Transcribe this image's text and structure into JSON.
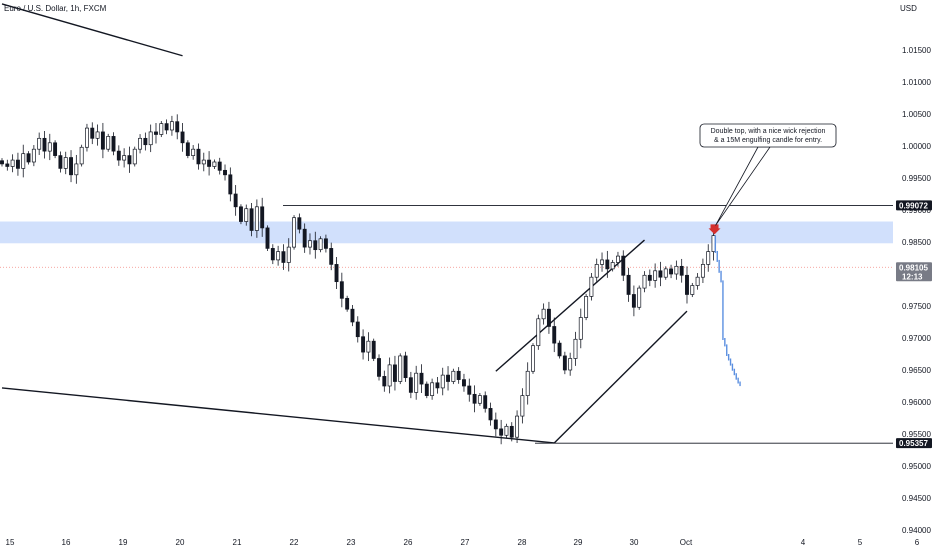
{
  "chart_data": {
    "type": "candlestick",
    "title": "Euro / U.S. Dollar, 1h, FXCM",
    "currency": "USD",
    "ylim": [
      0.94,
      1.02
    ],
    "y_ticks": [
      "1.01500",
      "1.01000",
      "1.00500",
      "1.00000",
      "0.99500",
      "0.99000",
      "0.98500",
      "0.98000",
      "0.97500",
      "0.97000",
      "0.96500",
      "0.96000",
      "0.95500",
      "0.95000",
      "0.94500",
      "0.94000"
    ],
    "x_ticks": [
      "15",
      "16",
      "19",
      "20",
      "21",
      "22",
      "23",
      "26",
      "27",
      "28",
      "29",
      "30",
      "Oct",
      "4",
      "5",
      "6"
    ],
    "price_tags": [
      {
        "id": "resistance",
        "label": "0.99072",
        "value": 0.99072,
        "color": "#131722"
      },
      {
        "id": "current",
        "label": "0.98105",
        "sublabel": "12:13",
        "value": 0.98105,
        "color": "#787b86"
      },
      {
        "id": "support",
        "label": "0.95357",
        "value": 0.95357,
        "color": "#131722"
      }
    ],
    "annotation": "Double top, with a nice wick rejection & a 15M engulfing candle for entry.",
    "zone": {
      "low": 0.9848,
      "high": 0.9882,
      "color": "#d1e0fc"
    },
    "candle_colors": {
      "up": "#ffffff",
      "down": "#131722",
      "wick": "#131722"
    },
    "projection_color": "#5b8fe0",
    "arrow_color": "#d32f2f",
    "current_line_color": "#f28b82",
    "series": [
      {
        "o": 0.9977,
        "c": 0.9972
      },
      {
        "o": 0.9972,
        "c": 0.9968
      },
      {
        "o": 0.9968,
        "c": 0.9978
      },
      {
        "o": 0.9978,
        "c": 0.9965
      },
      {
        "o": 0.9965,
        "c": 0.9988
      },
      {
        "o": 0.9988,
        "c": 0.9975
      },
      {
        "o": 0.9975,
        "c": 0.9995
      },
      {
        "o": 0.9995,
        "c": 1.0012
      },
      {
        "o": 1.0012,
        "c": 0.9992
      },
      {
        "o": 0.9992,
        "c": 1.0005
      },
      {
        "o": 1.0005,
        "c": 0.9985
      },
      {
        "o": 0.9985,
        "c": 0.9965
      },
      {
        "o": 0.9965,
        "c": 0.9982
      },
      {
        "o": 0.9982,
        "c": 0.9955
      },
      {
        "o": 0.9955,
        "c": 0.9972
      },
      {
        "o": 0.9972,
        "c": 0.9998
      },
      {
        "o": 0.9998,
        "c": 1.0028
      },
      {
        "o": 1.0028,
        "c": 1.0012
      },
      {
        "o": 1.0012,
        "c": 1.0022
      },
      {
        "o": 1.0022,
        "c": 0.9995
      },
      {
        "o": 0.9995,
        "c": 1.0015
      },
      {
        "o": 1.0015,
        "c": 0.9992
      },
      {
        "o": 0.9992,
        "c": 0.9978
      },
      {
        "o": 0.9978,
        "c": 0.9985
      },
      {
        "o": 0.9985,
        "c": 0.9972
      },
      {
        "o": 0.9972,
        "c": 0.9995
      },
      {
        "o": 0.9995,
        "c": 1.0012
      },
      {
        "o": 1.0012,
        "c": 1.0002
      },
      {
        "o": 1.0002,
        "c": 1.0022
      },
      {
        "o": 1.0022,
        "c": 1.0018
      },
      {
        "o": 1.0018,
        "c": 1.0035
      },
      {
        "o": 1.0035,
        "c": 1.0025
      },
      {
        "o": 1.0025,
        "c": 1.0038
      },
      {
        "o": 1.0038,
        "c": 1.0022
      },
      {
        "o": 1.0022,
        "c": 1.0005
      },
      {
        "o": 1.0005,
        "c": 0.9985
      },
      {
        "o": 0.9985,
        "c": 0.9995
      },
      {
        "o": 0.9995,
        "c": 0.9972
      },
      {
        "o": 0.9972,
        "c": 0.9978
      },
      {
        "o": 0.9978,
        "c": 0.9968
      },
      {
        "o": 0.9968,
        "c": 0.9975
      },
      {
        "o": 0.9975,
        "c": 0.9962
      },
      {
        "o": 0.9962,
        "c": 0.9955
      },
      {
        "o": 0.9955,
        "c": 0.9925
      },
      {
        "o": 0.9925,
        "c": 0.9905
      },
      {
        "o": 0.9905,
        "c": 0.9882
      },
      {
        "o": 0.9882,
        "c": 0.9902
      },
      {
        "o": 0.9902,
        "c": 0.9868
      },
      {
        "o": 0.9868,
        "c": 0.9905
      },
      {
        "o": 0.9905,
        "c": 0.9872
      },
      {
        "o": 0.9872,
        "c": 0.984
      },
      {
        "o": 0.984,
        "c": 0.9822
      },
      {
        "o": 0.9822,
        "c": 0.9835
      },
      {
        "o": 0.9835,
        "c": 0.9818
      },
      {
        "o": 0.9818,
        "c": 0.9842
      },
      {
        "o": 0.9842,
        "c": 0.9888
      },
      {
        "o": 0.9888,
        "c": 0.987
      },
      {
        "o": 0.987,
        "c": 0.9842
      },
      {
        "o": 0.9842,
        "c": 0.9852
      },
      {
        "o": 0.9852,
        "c": 0.9838
      },
      {
        "o": 0.9838,
        "c": 0.9855
      },
      {
        "o": 0.9855,
        "c": 0.984
      },
      {
        "o": 0.984,
        "c": 0.9815
      },
      {
        "o": 0.9815,
        "c": 0.9788
      },
      {
        "o": 0.9788,
        "c": 0.9762
      },
      {
        "o": 0.9762,
        "c": 0.9745
      },
      {
        "o": 0.9745,
        "c": 0.9725
      },
      {
        "o": 0.9725,
        "c": 0.9702
      },
      {
        "o": 0.9702,
        "c": 0.9678
      },
      {
        "o": 0.9678,
        "c": 0.9695
      },
      {
        "o": 0.9695,
        "c": 0.9668
      },
      {
        "o": 0.9668,
        "c": 0.964
      },
      {
        "o": 0.964,
        "c": 0.9625
      },
      {
        "o": 0.9625,
        "c": 0.9658
      },
      {
        "o": 0.9658,
        "c": 0.9632
      },
      {
        "o": 0.9632,
        "c": 0.9672
      },
      {
        "o": 0.9672,
        "c": 0.9638
      },
      {
        "o": 0.9638,
        "c": 0.9615
      },
      {
        "o": 0.9615,
        "c": 0.9645
      },
      {
        "o": 0.9645,
        "c": 0.9628
      },
      {
        "o": 0.9628,
        "c": 0.961
      },
      {
        "o": 0.961,
        "c": 0.963
      },
      {
        "o": 0.963,
        "c": 0.9622
      },
      {
        "o": 0.9622,
        "c": 0.9642
      },
      {
        "o": 0.9642,
        "c": 0.9632
      },
      {
        "o": 0.9632,
        "c": 0.9648
      },
      {
        "o": 0.9648,
        "c": 0.9635
      },
      {
        "o": 0.9635,
        "c": 0.9625
      },
      {
        "o": 0.9625,
        "c": 0.9612
      },
      {
        "o": 0.9612,
        "c": 0.9598
      },
      {
        "o": 0.9598,
        "c": 0.961
      },
      {
        "o": 0.961,
        "c": 0.959
      },
      {
        "o": 0.959,
        "c": 0.9572
      },
      {
        "o": 0.9572,
        "c": 0.9558
      },
      {
        "o": 0.9558,
        "c": 0.9548
      },
      {
        "o": 0.9548,
        "c": 0.9562
      },
      {
        "o": 0.9562,
        "c": 0.9545
      },
      {
        "o": 0.9545,
        "c": 0.9578
      },
      {
        "o": 0.9578,
        "c": 0.961
      },
      {
        "o": 0.961,
        "c": 0.9648
      },
      {
        "o": 0.9648,
        "c": 0.9688
      },
      {
        "o": 0.9688,
        "c": 0.973
      },
      {
        "o": 0.973,
        "c": 0.9745
      },
      {
        "o": 0.9745,
        "c": 0.9718
      },
      {
        "o": 0.9718,
        "c": 0.9692
      },
      {
        "o": 0.9692,
        "c": 0.9672
      },
      {
        "o": 0.9672,
        "c": 0.965
      },
      {
        "o": 0.965,
        "c": 0.9668
      },
      {
        "o": 0.9668,
        "c": 0.9698
      },
      {
        "o": 0.9698,
        "c": 0.9732
      },
      {
        "o": 0.9732,
        "c": 0.9765
      },
      {
        "o": 0.9765,
        "c": 0.9795
      },
      {
        "o": 0.9795,
        "c": 0.9815
      },
      {
        "o": 0.9815,
        "c": 0.9822
      },
      {
        "o": 0.9822,
        "c": 0.9808
      },
      {
        "o": 0.9808,
        "c": 0.9818
      },
      {
        "o": 0.9818,
        "c": 0.9828
      },
      {
        "o": 0.9828,
        "c": 0.9798
      },
      {
        "o": 0.9798,
        "c": 0.9768
      },
      {
        "o": 0.9768,
        "c": 0.9748
      },
      {
        "o": 0.9748,
        "c": 0.9778
      },
      {
        "o": 0.9778,
        "c": 0.9798
      },
      {
        "o": 0.9798,
        "c": 0.979
      },
      {
        "o": 0.979,
        "c": 0.9805
      },
      {
        "o": 0.9805,
        "c": 0.9795
      },
      {
        "o": 0.9795,
        "c": 0.9808
      },
      {
        "o": 0.9808,
        "c": 0.98
      },
      {
        "o": 0.98,
        "c": 0.9812
      },
      {
        "o": 0.9812,
        "c": 0.9798
      },
      {
        "o": 0.9798,
        "c": 0.9768
      },
      {
        "o": 0.9768,
        "c": 0.9782
      },
      {
        "o": 0.9782,
        "c": 0.9795
      },
      {
        "o": 0.9795,
        "c": 0.9815
      },
      {
        "o": 0.9815,
        "c": 0.9835
      },
      {
        "o": 0.9835,
        "c": 0.986
      }
    ],
    "projection": [
      0.9836,
      0.9822,
      0.9805,
      0.979,
      0.97,
      0.969,
      0.9675,
      0.9668,
      0.966,
      0.9652,
      0.9645,
      0.9638,
      0.9632,
      0.9628
    ],
    "trendlines": [
      {
        "id": "upper-left-line",
        "from": [
          0,
          1.0222
        ],
        "to": [
          34,
          1.0141
        ]
      },
      {
        "id": "wedge-upper",
        "from": [
          93,
          0.9648
        ],
        "to": [
          121,
          0.9853
        ]
      },
      {
        "id": "wedge-lower",
        "from": [
          104,
          0.9536
        ],
        "to": [
          129,
          0.9742
        ]
      },
      {
        "id": "lower-channel",
        "from": [
          0,
          0.9622
        ],
        "to": [
          104,
          0.9536
        ]
      }
    ]
  }
}
